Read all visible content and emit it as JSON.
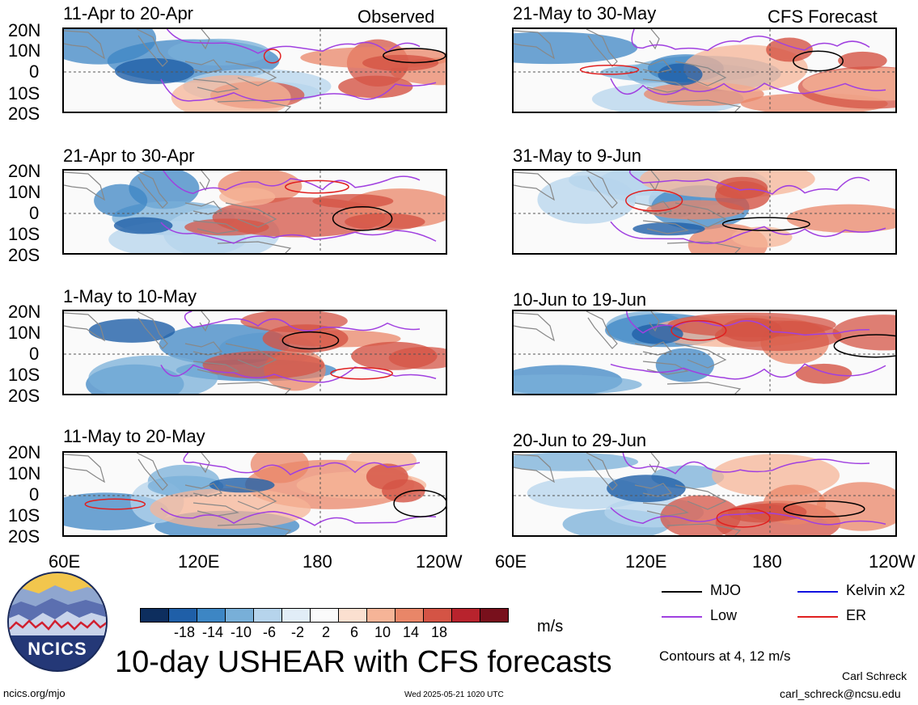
{
  "observed_label": "Observed",
  "forecast_label": "CFS Forecast",
  "panels_left": [
    {
      "title": "11-Apr to 20-Apr"
    },
    {
      "title": "21-Apr to 30-Apr"
    },
    {
      "title": "1-May to 10-May"
    },
    {
      "title": "11-May to 20-May"
    }
  ],
  "panels_right": [
    {
      "title": "21-May to 30-May"
    },
    {
      "title": "31-May to 9-Jun"
    },
    {
      "title": "10-Jun to 19-Jun"
    },
    {
      "title": "20-Jun to 29-Jun"
    }
  ],
  "lat_labels": [
    "20N",
    "10N",
    "0",
    "10S",
    "20S"
  ],
  "lon_labels_left": [
    "60E",
    "120E",
    "180",
    "120W"
  ],
  "lon_labels_right": [
    "60E",
    "120E",
    "180",
    "120W"
  ],
  "legend": {
    "mjo": "MJO",
    "kelvin": "Kelvin x2",
    "low": "Low",
    "er": "ER",
    "colors": {
      "mjo": "#000000",
      "kelvin": "#1010e0",
      "low": "#a040e0",
      "er": "#e02020"
    }
  },
  "colorbar": {
    "colors": [
      "#0d2e5e",
      "#1f5fa8",
      "#3d86c4",
      "#78afd8",
      "#b6d4ec",
      "#e1edf7",
      "#fbfbfb",
      "#fbe0d0",
      "#f6b497",
      "#e98668",
      "#d45445",
      "#b8232d",
      "#78101c"
    ],
    "labels": [
      "-18",
      "-14",
      "-10",
      "-6",
      "-2",
      "2",
      "6",
      "10",
      "14",
      "18"
    ],
    "units": "m/s"
  },
  "contour_note": "Contours at 4, 12 m/s",
  "main_title": "10-day USHEAR with CFS forecasts",
  "footer_left": "ncics.org/mjo",
  "footer_center": "Wed 2025-05-21 1020 UTC",
  "footer_author": "Carl Schreck",
  "footer_email": "carl_schreck@ncsu.edu",
  "logo_text": "NCICS"
}
